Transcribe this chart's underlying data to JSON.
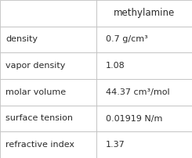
{
  "title": "methylamine",
  "rows": [
    {
      "property": "density",
      "value": "0.7 g/cm³"
    },
    {
      "property": "vapor density",
      "value": "1.08"
    },
    {
      "property": "molar volume",
      "value": "44.37 cm³/mol"
    },
    {
      "property": "surface tension",
      "value": "0.01919 N/m"
    },
    {
      "property": "refractive index",
      "value": "1.37"
    }
  ],
  "col_split": 0.5,
  "bg_color": "#ffffff",
  "border_color": "#c0c0c0",
  "text_color": "#2b2b2b",
  "header_fontsize": 8.5,
  "cell_fontsize": 8.0,
  "fig_width": 2.45,
  "fig_height": 2.02,
  "dpi": 100
}
